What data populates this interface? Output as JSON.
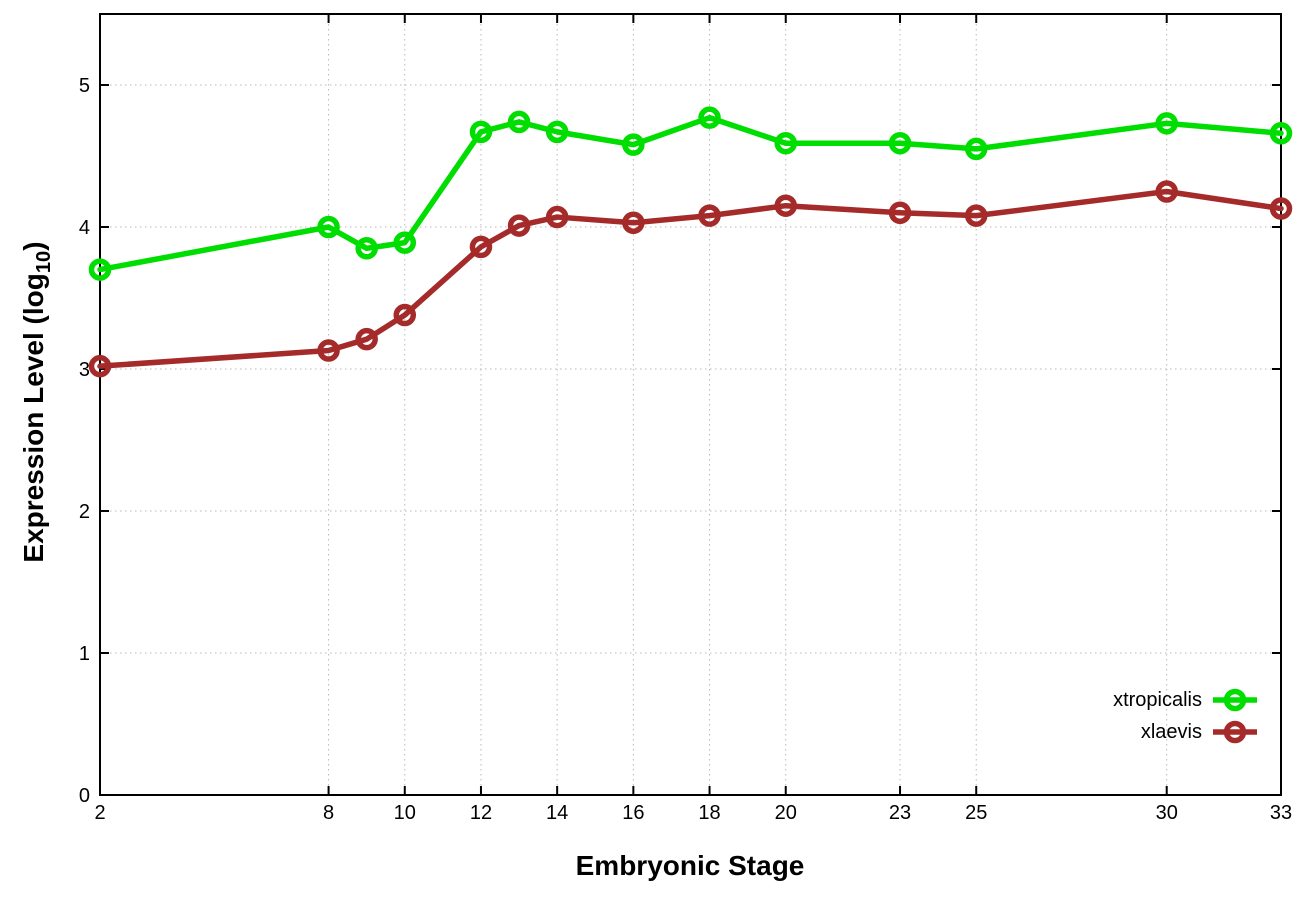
{
  "chart_data": {
    "type": "line",
    "title": "",
    "xlabel": "Embryonic Stage",
    "ylabel": "Expression Level (log10)",
    "ylabel_parts": {
      "text": "Expression Level (log",
      "sub": "10",
      "close": ")"
    },
    "x": [
      2,
      8,
      9,
      10,
      12,
      13,
      14,
      16,
      18,
      20,
      23,
      25,
      30,
      33
    ],
    "x_ticks": [
      2,
      8,
      10,
      12,
      14,
      16,
      18,
      20,
      23,
      25,
      30,
      33
    ],
    "y_ticks": [
      0,
      1,
      2,
      3,
      4,
      5
    ],
    "xlim": [
      2,
      33
    ],
    "ylim": [
      0,
      5.5
    ],
    "grid": true,
    "legend_position": "inside-right-lower",
    "series": [
      {
        "name": "xtropicalis",
        "color": "#00dd00",
        "marker": "open-circle",
        "values": [
          3.7,
          4.0,
          3.85,
          3.89,
          4.67,
          4.74,
          4.67,
          4.58,
          4.77,
          4.59,
          4.59,
          4.55,
          4.73,
          4.66
        ]
      },
      {
        "name": "xlaevis",
        "color": "#a52a2a",
        "marker": "open-circle",
        "values": [
          3.02,
          3.13,
          3.21,
          3.38,
          3.86,
          4.01,
          4.07,
          4.03,
          4.08,
          4.15,
          4.1,
          4.08,
          4.25,
          4.13
        ]
      }
    ]
  },
  "colors": {
    "background": "#ffffff",
    "axis": "#000000",
    "grid": "#b8b8b8",
    "text": "#000000"
  }
}
